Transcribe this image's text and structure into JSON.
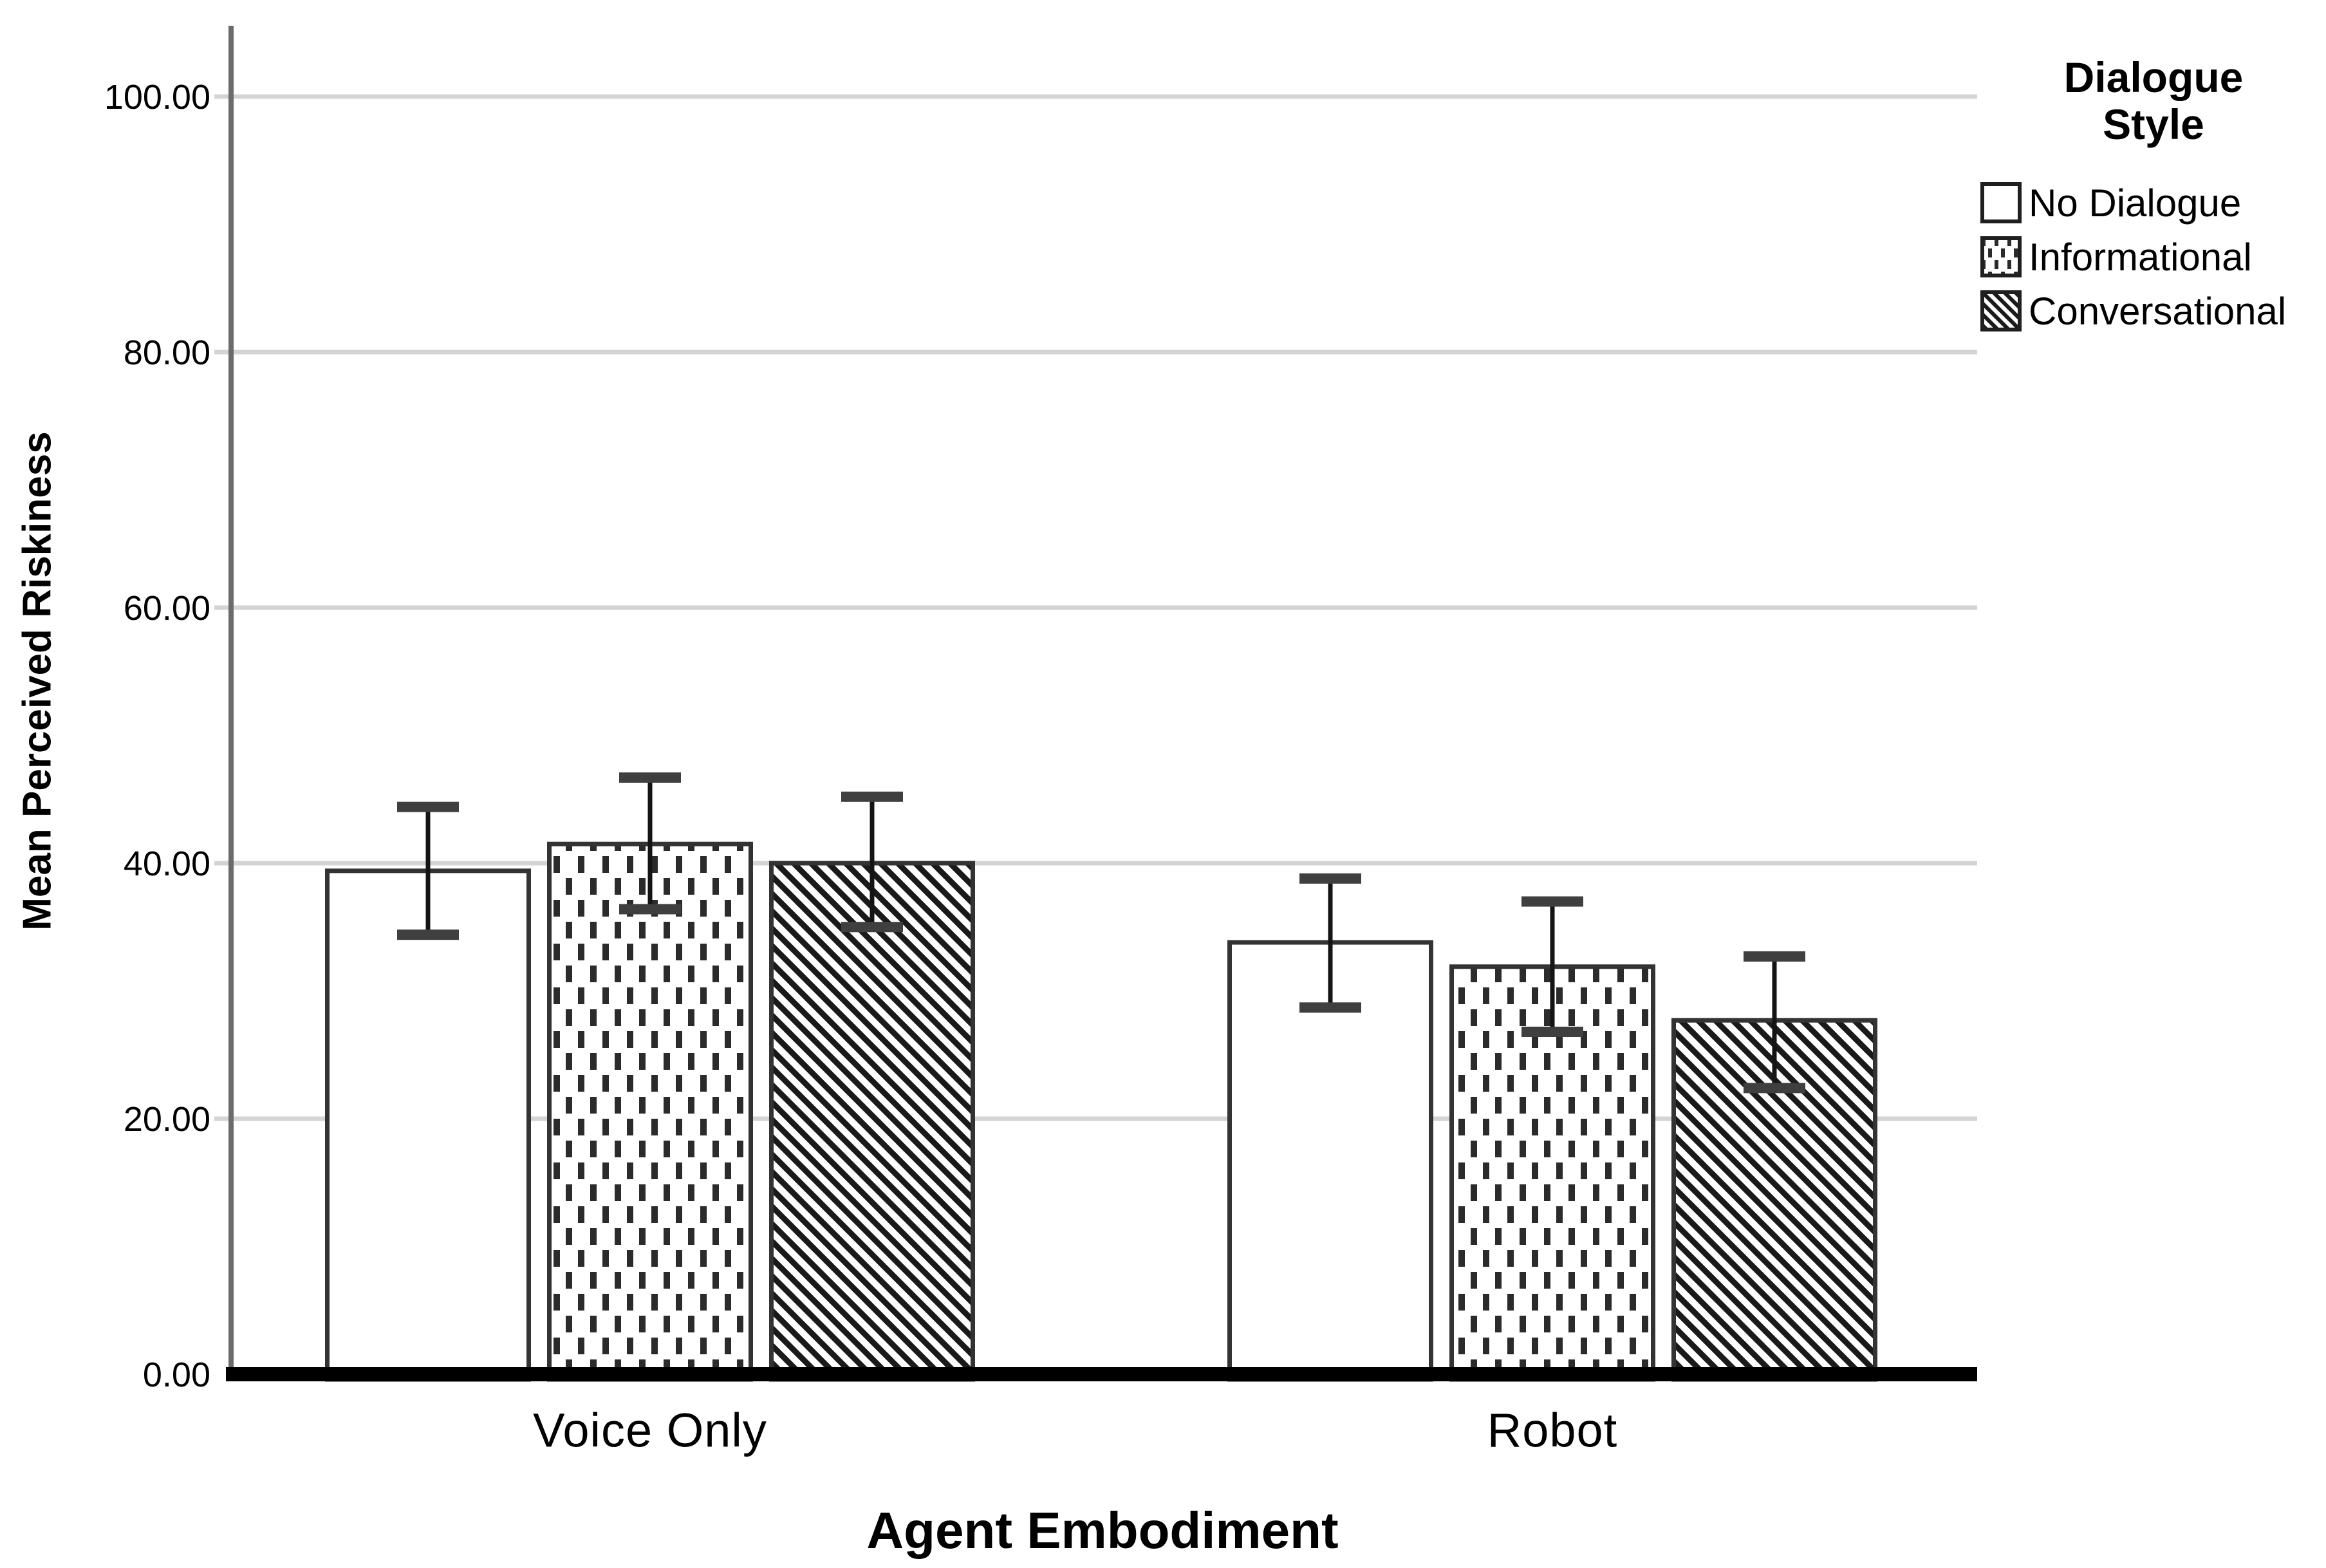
{
  "chart_data": {
    "type": "bar",
    "title": "",
    "xlabel": "Agent Embodiment",
    "ylabel": "Mean Perceived Riskiness",
    "ylim": [
      0,
      100
    ],
    "yticks": [
      {
        "value": 0,
        "label": "0.00"
      },
      {
        "value": 20,
        "label": "20.00"
      },
      {
        "value": 40,
        "label": "40.00"
      },
      {
        "value": 60,
        "label": "60.00"
      },
      {
        "value": 80,
        "label": "80.00"
      },
      {
        "value": 100,
        "label": "100.00"
      }
    ],
    "categories": [
      "Voice Only",
      "Robot"
    ],
    "series": [
      {
        "name": "No Dialogue",
        "fill_pattern": "plain-white",
        "values": [
          39.4,
          33.8
        ],
        "ci_low": [
          34.4,
          28.7
        ],
        "ci_high": [
          44.4,
          38.8
        ]
      },
      {
        "name": "Informational",
        "fill_pattern": "dotted",
        "values": [
          41.5,
          31.9
        ],
        "ci_low": [
          36.4,
          26.8
        ],
        "ci_high": [
          46.7,
          37.0
        ]
      },
      {
        "name": "Conversational",
        "fill_pattern": "diagonal-hatch",
        "values": [
          40.0,
          27.7
        ],
        "ci_low": [
          35.0,
          22.4
        ],
        "ci_high": [
          45.2,
          32.7
        ]
      }
    ],
    "legend": {
      "title": "Dialogue Style",
      "position": "top-right"
    },
    "error_bars": true,
    "grid": "horizontal"
  },
  "colors": {
    "background": "#ffffff",
    "gridline": "#d4d4d4",
    "y_axis_line": "#6b6b6b",
    "baseline": "#000000",
    "bar_border": "#333333",
    "pattern_ink": "#2b2b2b",
    "error_whisker": "#141414",
    "error_cap": "#3f3f3f",
    "text": "#000000"
  }
}
